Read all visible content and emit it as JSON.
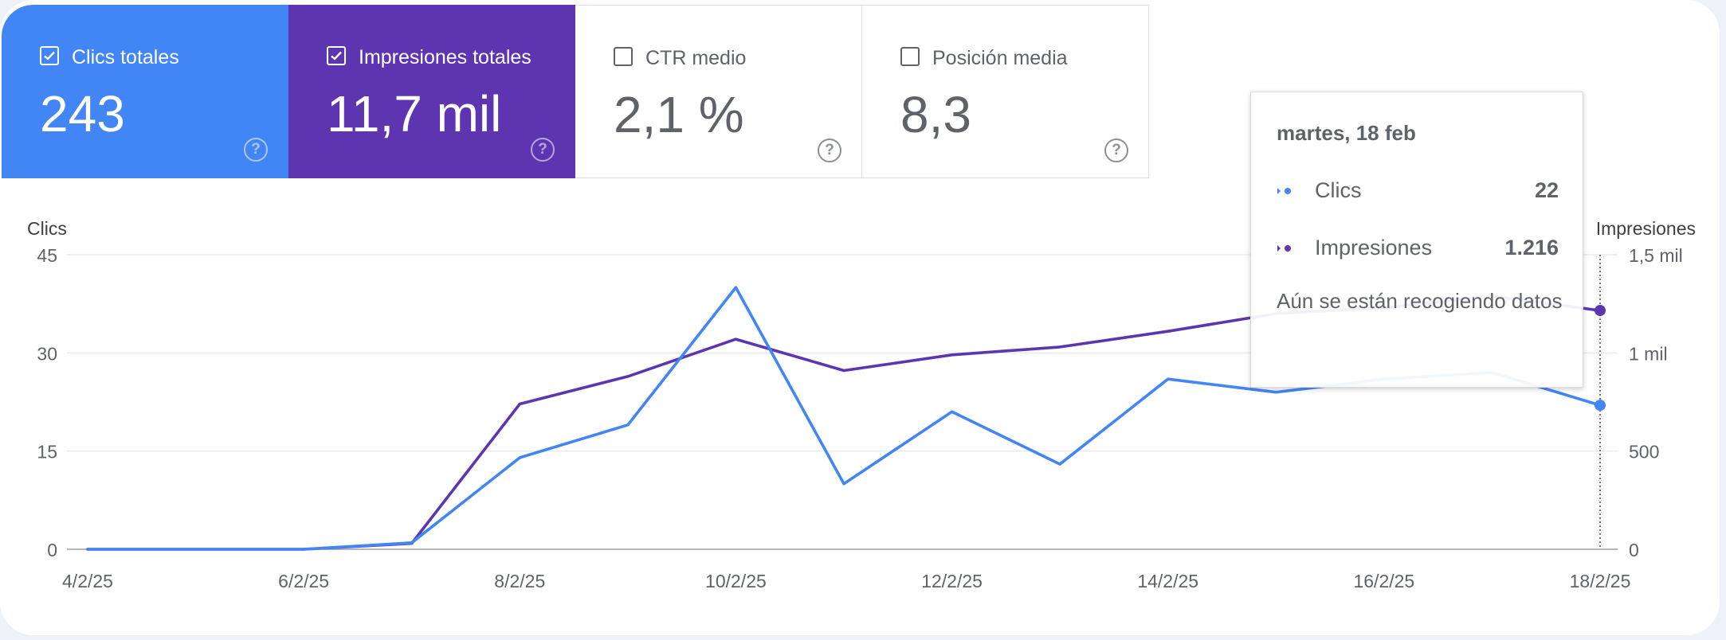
{
  "metrics": [
    {
      "label": "Clics totales",
      "value": "243",
      "checked": true
    },
    {
      "label": "Impresiones totales",
      "value": "11,7 mil",
      "checked": true
    },
    {
      "label": "CTR medio",
      "value": "2,1 %",
      "checked": false
    },
    {
      "label": "Posición media",
      "value": "8,3",
      "checked": false
    }
  ],
  "tooltip": {
    "date": "martes, 18 feb",
    "clicks_label": "Clics",
    "clicks_value": "22",
    "impressions_label": "Impresiones",
    "impressions_value": "1.216",
    "note": "Aún se están recogiendo datos"
  },
  "colors": {
    "clicks": "#4285f4",
    "impressions": "#5e35b1",
    "grid": "#e8eaed",
    "axis_text": "#5f6368"
  },
  "chart_data": {
    "type": "line",
    "x": [
      "4/2/25",
      "5/2/25",
      "6/2/25",
      "7/2/25",
      "8/2/25",
      "9/2/25",
      "10/2/25",
      "11/2/25",
      "12/2/25",
      "13/2/25",
      "14/2/25",
      "15/2/25",
      "16/2/25",
      "17/2/25",
      "18/2/25"
    ],
    "x_tick_labels": [
      "4/2/25",
      "6/2/25",
      "8/2/25",
      "10/2/25",
      "12/2/25",
      "14/2/25",
      "16/2/25",
      "18/2/25"
    ],
    "series": [
      {
        "name": "Clics",
        "axis": "left",
        "values": [
          0,
          0,
          0,
          1,
          14,
          19,
          40,
          10,
          21,
          13,
          26,
          24,
          26,
          27,
          22
        ]
      },
      {
        "name": "Impresiones",
        "axis": "right",
        "values": [
          0,
          0,
          0,
          30,
          740,
          880,
          1070,
          910,
          990,
          1030,
          1110,
          1200,
          1230,
          1290,
          1216
        ]
      }
    ],
    "ylabel_left": "Clics",
    "ylabel_right": "Impresiones",
    "ylim_left": [
      0,
      45
    ],
    "ylim_right": [
      0,
      1500
    ],
    "yticks_left": [
      "0",
      "15",
      "30",
      "45"
    ],
    "yticks_right": [
      "0",
      "500",
      "1 mil",
      "1,5 mil"
    ],
    "grid": true
  }
}
